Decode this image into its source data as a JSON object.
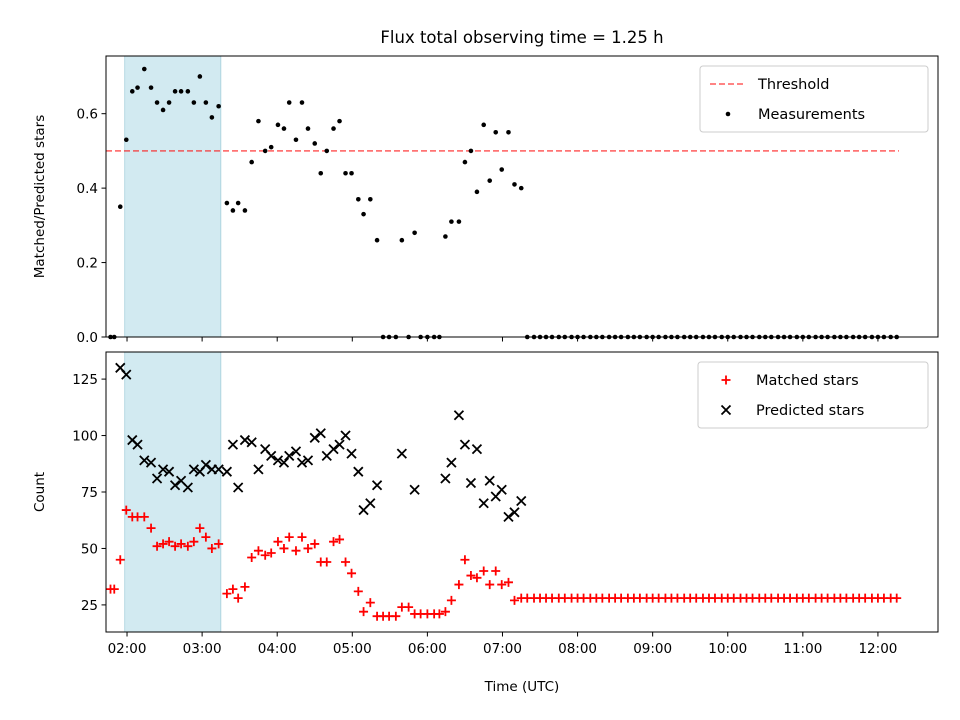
{
  "title": "Flux total observing time = 1.25 h",
  "chart_data": [
    {
      "type": "scatter",
      "panel": "top",
      "ylabel": "Matched/Predicted stars",
      "xlabel": "",
      "xlim": [
        1.72,
        12.8
      ],
      "ylim": [
        0,
        0.755
      ],
      "xticks": [
        2,
        3,
        4,
        5,
        6,
        7,
        8,
        9,
        10,
        11,
        12
      ],
      "yticks": [
        0.0,
        0.2,
        0.4,
        0.6
      ],
      "ytick_labels": [
        "0.0",
        "0.2",
        "0.4",
        "0.6"
      ],
      "shaded_span": {
        "start": 1.97,
        "end": 3.25,
        "color": "#add8e6"
      },
      "threshold": {
        "name": "Threshold",
        "value": 0.5,
        "x": [
          1.72,
          12.28
        ],
        "color": "#ff0000",
        "style": "dashed"
      },
      "legend": {
        "position": "top-right",
        "entries": [
          "Threshold",
          "Measurements"
        ]
      },
      "series": [
        {
          "name": "Measurements",
          "marker": "dot",
          "color": "#000000",
          "x": [
            1.78,
            1.83,
            1.91,
            1.99,
            2.07,
            2.14,
            2.23,
            2.32,
            2.4,
            2.48,
            2.56,
            2.64,
            2.72,
            2.81,
            2.89,
            2.97,
            3.05,
            3.13,
            3.22,
            3.33,
            3.41,
            3.48,
            3.57,
            3.66,
            3.75,
            3.84,
            3.92,
            4.01,
            4.09,
            4.16,
            4.25,
            4.33,
            4.41,
            4.5,
            4.58,
            4.66,
            4.75,
            4.83,
            4.91,
            4.99,
            5.08,
            5.15,
            5.24,
            5.33,
            5.41,
            5.49,
            5.58,
            5.66,
            5.75,
            5.83,
            5.91,
            6.0,
            6.09,
            6.16,
            6.24,
            6.32,
            6.42,
            6.5,
            6.58,
            6.66,
            6.75,
            6.83,
            6.91,
            6.99,
            7.08,
            7.16,
            7.25,
            7.33,
            7.42,
            7.5,
            7.58,
            7.66,
            7.75,
            7.83,
            7.92,
            8.0,
            8.08,
            8.17,
            8.25,
            8.33,
            8.42,
            8.5,
            8.58,
            8.67,
            8.75,
            8.83,
            8.92,
            9.0,
            9.08,
            9.17,
            9.25,
            9.33,
            9.42,
            9.5,
            9.58,
            9.67,
            9.75,
            9.83,
            9.92,
            10.0,
            10.08,
            10.17,
            10.25,
            10.33,
            10.42,
            10.5,
            10.58,
            10.67,
            10.75,
            10.83,
            10.92,
            11.0,
            11.08,
            11.17,
            11.25,
            11.33,
            11.42,
            11.5,
            11.58,
            11.67,
            11.75,
            11.83,
            11.92,
            12.0,
            12.08,
            12.17,
            12.25
          ],
          "y": [
            0.0,
            0.0,
            0.35,
            0.53,
            0.66,
            0.67,
            0.72,
            0.67,
            0.63,
            0.61,
            0.63,
            0.66,
            0.66,
            0.66,
            0.63,
            0.7,
            0.63,
            0.59,
            0.62,
            0.36,
            0.34,
            0.36,
            0.34,
            0.47,
            0.58,
            0.5,
            0.51,
            0.57,
            0.56,
            0.63,
            0.53,
            0.63,
            0.56,
            0.52,
            0.44,
            0.5,
            0.56,
            0.58,
            0.44,
            0.44,
            0.37,
            0.33,
            0.37,
            0.26,
            0.0,
            0.0,
            0.0,
            0.26,
            0.0,
            0.28,
            0.0,
            0.0,
            0.0,
            0.0,
            0.27,
            0.31,
            0.31,
            0.47,
            0.5,
            0.39,
            0.57,
            0.42,
            0.55,
            0.45,
            0.55,
            0.41,
            0.4,
            0.0,
            0.0,
            0.0,
            0.0,
            0.0,
            0.0,
            0.0,
            0.0,
            0.0,
            0.0,
            0.0,
            0.0,
            0.0,
            0.0,
            0.0,
            0.0,
            0.0,
            0.0,
            0.0,
            0.0,
            0.0,
            0.0,
            0.0,
            0.0,
            0.0,
            0.0,
            0.0,
            0.0,
            0.0,
            0.0,
            0.0,
            0.0,
            0.0,
            0.0,
            0.0,
            0.0,
            0.0,
            0.0,
            0.0,
            0.0,
            0.0,
            0.0,
            0.0,
            0.0,
            0.0,
            0.0,
            0.0,
            0.0,
            0.0,
            0.0,
            0.0,
            0.0,
            0.0,
            0.0,
            0.0,
            0.0,
            0.0,
            0.0,
            0.0,
            0.0
          ]
        }
      ]
    },
    {
      "type": "scatter",
      "panel": "bottom",
      "ylabel": "Count",
      "xlabel": "Time (UTC)",
      "xlim": [
        1.72,
        12.8
      ],
      "ylim": [
        13,
        137
      ],
      "xticks": [
        2,
        3,
        4,
        5,
        6,
        7,
        8,
        9,
        10,
        11,
        12
      ],
      "xtick_labels": [
        "02:00",
        "03:00",
        "04:00",
        "05:00",
        "06:00",
        "07:00",
        "08:00",
        "09:00",
        "10:00",
        "11:00",
        "12:00"
      ],
      "yticks": [
        25,
        50,
        75,
        100,
        125
      ],
      "ytick_labels": [
        "25",
        "50",
        "75",
        "100",
        "125"
      ],
      "shaded_span": {
        "start": 1.97,
        "end": 3.25,
        "color": "#add8e6"
      },
      "legend": {
        "position": "top-right",
        "entries": [
          "Matched stars",
          "Predicted stars"
        ]
      },
      "series": [
        {
          "name": "Matched stars",
          "marker": "plus",
          "color": "#ff0000",
          "x": [
            1.78,
            1.83,
            1.91,
            1.99,
            2.07,
            2.14,
            2.23,
            2.32,
            2.4,
            2.48,
            2.56,
            2.64,
            2.72,
            2.81,
            2.89,
            2.97,
            3.05,
            3.13,
            3.22,
            3.33,
            3.41,
            3.48,
            3.57,
            3.66,
            3.75,
            3.84,
            3.92,
            4.01,
            4.09,
            4.16,
            4.25,
            4.33,
            4.41,
            4.5,
            4.58,
            4.66,
            4.75,
            4.83,
            4.91,
            4.99,
            5.08,
            5.15,
            5.24,
            5.33,
            5.41,
            5.49,
            5.58,
            5.66,
            5.75,
            5.83,
            5.91,
            6.0,
            6.09,
            6.16,
            6.24,
            6.32,
            6.42,
            6.5,
            6.58,
            6.66,
            6.75,
            6.83,
            6.91,
            6.99,
            7.08,
            7.16,
            7.25,
            7.33,
            7.42,
            7.5,
            7.58,
            7.66,
            7.75,
            7.83,
            7.92,
            8.0,
            8.08,
            8.17,
            8.25,
            8.33,
            8.42,
            8.5,
            8.58,
            8.67,
            8.75,
            8.83,
            8.92,
            9.0,
            9.08,
            9.17,
            9.25,
            9.33,
            9.42,
            9.5,
            9.58,
            9.67,
            9.75,
            9.83,
            9.92,
            10.0,
            10.08,
            10.17,
            10.25,
            10.33,
            10.42,
            10.5,
            10.58,
            10.67,
            10.75,
            10.83,
            10.92,
            11.0,
            11.08,
            11.17,
            11.25,
            11.33,
            11.42,
            11.5,
            11.58,
            11.67,
            11.75,
            11.83,
            11.92,
            12.0,
            12.08,
            12.17,
            12.25
          ],
          "y": [
            32,
            32,
            45,
            67,
            64,
            64,
            64,
            59,
            51,
            52,
            53,
            51,
            52,
            51,
            53,
            59,
            55,
            50,
            52,
            30,
            32,
            28,
            33,
            46,
            49,
            47,
            48,
            53,
            50,
            55,
            49,
            55,
            50,
            52,
            44,
            44,
            53,
            54,
            44,
            39,
            31,
            22,
            26,
            20,
            20,
            20,
            20,
            24,
            24,
            21,
            21,
            21,
            21,
            21,
            22,
            27,
            34,
            45,
            38,
            37,
            40,
            34,
            40,
            34,
            35,
            27,
            28,
            28,
            28,
            28,
            28,
            28,
            28,
            28,
            28,
            28,
            28,
            28,
            28,
            28,
            28,
            28,
            28,
            28,
            28,
            28,
            28,
            28,
            28,
            28,
            28,
            28,
            28,
            28,
            28,
            28,
            28,
            28,
            28,
            28,
            28,
            28,
            28,
            28,
            28,
            28,
            28,
            28,
            28,
            28,
            28,
            28,
            28,
            28,
            28,
            28,
            28,
            28,
            28,
            28,
            28,
            28,
            28,
            28,
            28,
            28,
            28
          ]
        },
        {
          "name": "Predicted stars",
          "marker": "x",
          "color": "#000000",
          "x": [
            1.91,
            1.99,
            2.07,
            2.14,
            2.23,
            2.32,
            2.4,
            2.48,
            2.56,
            2.64,
            2.72,
            2.81,
            2.89,
            2.97,
            3.05,
            3.13,
            3.22,
            3.33,
            3.41,
            3.48,
            3.57,
            3.66,
            3.75,
            3.84,
            3.92,
            4.01,
            4.09,
            4.16,
            4.25,
            4.33,
            4.41,
            4.5,
            4.58,
            4.66,
            4.75,
            4.83,
            4.91,
            4.99,
            5.08,
            5.15,
            5.24,
            5.33,
            5.66,
            5.83,
            6.24,
            6.32,
            6.42,
            6.5,
            6.58,
            6.66,
            6.75,
            6.83,
            6.91,
            6.99,
            7.08,
            7.16,
            7.25
          ],
          "y": [
            130,
            127,
            98,
            96,
            89,
            88,
            81,
            85,
            84,
            78,
            80,
            77,
            85,
            84,
            87,
            85,
            85,
            84,
            96,
            77,
            98,
            97,
            85,
            94,
            91,
            89,
            88,
            91,
            93,
            88,
            89,
            99,
            101,
            91,
            94,
            96,
            100,
            92,
            84,
            67,
            70,
            78,
            92,
            76,
            81,
            88,
            109,
            96,
            79,
            94,
            70,
            80,
            73,
            76,
            64,
            66,
            71
          ]
        }
      ]
    }
  ]
}
